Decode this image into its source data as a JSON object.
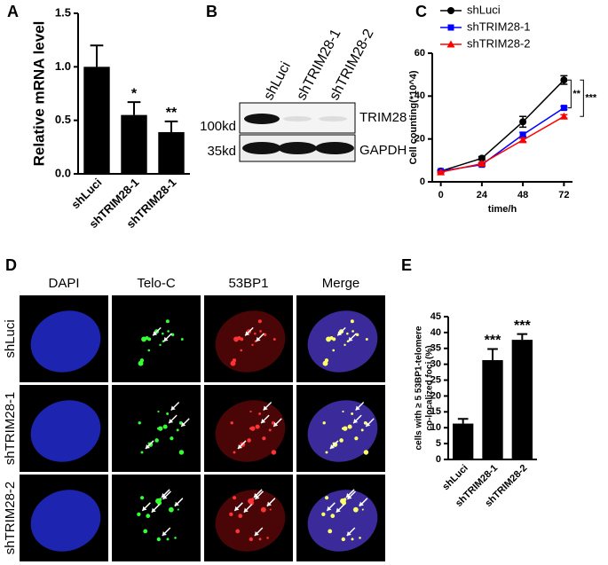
{
  "panels": [
    "A",
    "B",
    "C",
    "D",
    "E"
  ],
  "chart_data": [
    {
      "type": "bar",
      "ylabel": [
        "Relative mRNA level"
      ],
      "categories": [
        "shLuci",
        "shTRIM28-1",
        "shTRIM28-1"
      ],
      "values": [
        1.0,
        0.55,
        0.39
      ],
      "errors": [
        0.2,
        0.12,
        0.1
      ],
      "significance": [
        null,
        "*",
        "**"
      ],
      "color": "#000000",
      "ylim": [
        0,
        1.5
      ],
      "yticks": [
        {
          "value": 0,
          "label": "0.0"
        },
        {
          "value": 0.5,
          "label": "0.5"
        },
        {
          "value": 1,
          "label": "1.0"
        },
        {
          "value": 1.5,
          "label": "1.5"
        }
      ]
    },
    {
      "type": "line",
      "xlabel": "time/h",
      "ylabel": "Cell counting(*10^4)",
      "x": [
        0,
        24,
        48,
        72
      ],
      "series": [
        {
          "name": "shLuci",
          "color": "#000000",
          "marker": "circle",
          "values": [
            5,
            11,
            28,
            47.5
          ],
          "errors": [
            0.5,
            0.8,
            2.5,
            2
          ]
        },
        {
          "name": "shTRIM28-1",
          "color": "#0000ff",
          "marker": "square",
          "values": [
            5,
            8,
            22,
            34.5
          ],
          "errors": [
            0.3,
            0.5,
            1,
            0.8
          ]
        },
        {
          "name": "shTRIM28-2",
          "color": "#ff0000",
          "marker": "triangle",
          "values": [
            4.5,
            8.5,
            19.5,
            30.5
          ],
          "errors": [
            0.3,
            0.5,
            0.8,
            0.8
          ]
        }
      ],
      "annotations": [
        "**",
        "***"
      ],
      "legend": "top",
      "xlim": [
        -5,
        77
      ],
      "xticks": [
        0,
        24,
        48,
        72
      ],
      "ylim": [
        0,
        60
      ],
      "yticks": [
        0,
        20,
        40,
        60
      ]
    },
    {
      "type": "bar",
      "ylabel": [
        "cells with ≥ 5 53BP1-telomere",
        "co-localized foci (%)"
      ],
      "categories": [
        "shLuci",
        "shTRIM28-1",
        "shTRIM28-2"
      ],
      "values": [
        11.3,
        31.3,
        37.7
      ],
      "errors": [
        1.5,
        3.5,
        1.8
      ],
      "significance": [
        null,
        "***",
        "***"
      ],
      "color": "#000000",
      "ylim": [
        0,
        45
      ],
      "yticks": [
        0,
        5,
        10,
        15,
        20,
        25,
        30,
        35,
        40,
        45
      ]
    }
  ],
  "blot": {
    "lanes": [
      "shLuci",
      "shTRIM28-1",
      "shTRIM28-2"
    ],
    "rows": [
      {
        "size": "100kd",
        "protein": "TRIM28"
      },
      {
        "size": "35kd",
        "protein": "GAPDH"
      }
    ]
  },
  "microscopy": {
    "columns": [
      "DAPI",
      "Telo-C",
      "53BP1",
      "Merge"
    ],
    "rows": [
      "shLuci",
      "shTRIM28-1",
      "shTRIM28-2"
    ]
  }
}
